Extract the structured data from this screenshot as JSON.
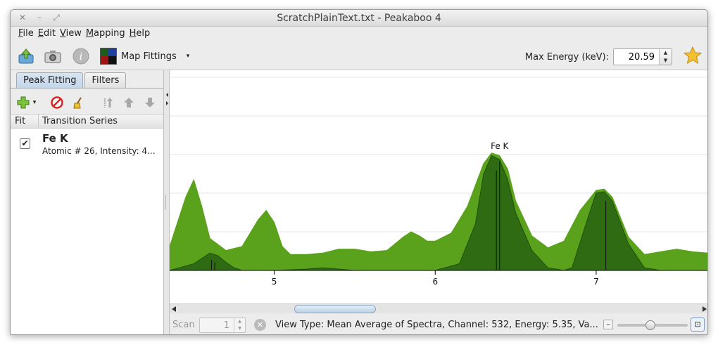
{
  "window": {
    "title": "ScratchPlainText.txt - Peakaboo 4",
    "controls": {
      "close": "✕",
      "minimize": "–",
      "maximize": "⤢"
    }
  },
  "menu": [
    {
      "label": "File",
      "mnemonic": "F",
      "rest": "ile"
    },
    {
      "label": "Edit",
      "mnemonic": "E",
      "rest": "dit"
    },
    {
      "label": "View",
      "mnemonic": "V",
      "rest": "iew"
    },
    {
      "label": "Mapping",
      "mnemonic": "M",
      "rest": "apping"
    },
    {
      "label": "Help",
      "mnemonic": "H",
      "rest": "elp"
    }
  ],
  "toolbar": {
    "icons": [
      "open-data-icon",
      "camera-icon",
      "info-icon"
    ],
    "map_fittings_label": "Map Fittings",
    "map_colors": [
      "#1a5e1a",
      "#1f3f9e",
      "#a01414",
      "#111111"
    ],
    "caret": "▾",
    "max_energy_label": "Max Energy (keV):",
    "max_energy_value": "20.59"
  },
  "left_panel": {
    "tabs": [
      {
        "label": "Peak Fitting",
        "active": true
      },
      {
        "label": "Filters",
        "active": false
      }
    ],
    "tools": [
      "add-icon",
      "remove-icon",
      "clear-icon",
      "sort-icon",
      "move-up-icon",
      "move-down-icon"
    ],
    "columns": {
      "fit": "Fit",
      "series": "Transition Series"
    },
    "rows": [
      {
        "checked": "✔",
        "title": "Fe K",
        "subtitle": "Atomic # 26, Intensity: 4..."
      }
    ]
  },
  "chart_data": {
    "type": "area",
    "xlim": [
      4.35,
      7.7
    ],
    "x_ticks": [
      "5",
      "6",
      "7"
    ],
    "grid": true,
    "annotation": "Fe K",
    "colors": {
      "spectrum": "#5aa21c",
      "fit": "#2e6b12",
      "outline": "#1f4f0a"
    },
    "series": [
      {
        "x": [
          4.35,
          4.45,
          4.5,
          4.55,
          4.6,
          4.7,
          4.8,
          4.9,
          4.95,
          5.0,
          5.05,
          5.1,
          5.2,
          5.3,
          5.4,
          5.5,
          5.6,
          5.7,
          5.8,
          5.85,
          5.9,
          5.95,
          6.0,
          6.1,
          6.2,
          6.3,
          6.35,
          6.4,
          6.45,
          6.5,
          6.6,
          6.7,
          6.8,
          6.9,
          7.0,
          7.05,
          7.1,
          7.2,
          7.3,
          7.4,
          7.5,
          7.6,
          7.7
        ],
        "y": [
          0.18,
          0.55,
          0.68,
          0.48,
          0.24,
          0.15,
          0.18,
          0.38,
          0.45,
          0.36,
          0.18,
          0.12,
          0.12,
          0.13,
          0.16,
          0.16,
          0.14,
          0.15,
          0.25,
          0.29,
          0.26,
          0.22,
          0.22,
          0.28,
          0.48,
          0.8,
          0.88,
          0.86,
          0.76,
          0.52,
          0.26,
          0.17,
          0.22,
          0.45,
          0.6,
          0.61,
          0.55,
          0.25,
          0.12,
          0.14,
          0.16,
          0.14,
          0.13
        ]
      },
      {
        "x": [
          4.35,
          4.5,
          4.55,
          4.6,
          4.65,
          4.7,
          4.75,
          4.8,
          4.9,
          5.0,
          5.2,
          5.3,
          5.4,
          5.5,
          5.8,
          6.0,
          6.15,
          6.25,
          6.3,
          6.35,
          6.4,
          6.45,
          6.5,
          6.6,
          6.7,
          6.8,
          6.85,
          6.95,
          7.0,
          7.05,
          7.1,
          7.2,
          7.3,
          7.4,
          7.7
        ],
        "y": [
          0,
          0.05,
          0.09,
          0.13,
          0.11,
          0.06,
          0.02,
          0,
          0,
          0,
          0.01,
          0.02,
          0.01,
          0,
          0,
          0,
          0.05,
          0.35,
          0.72,
          0.86,
          0.83,
          0.68,
          0.43,
          0.15,
          0.02,
          0,
          0.02,
          0.4,
          0.58,
          0.59,
          0.52,
          0.2,
          0.02,
          0,
          0
        ]
      }
    ],
    "markers": [
      {
        "x": 4.61,
        "y": 0.08
      },
      {
        "x": 4.63,
        "y": 0.06
      },
      {
        "x": 6.38,
        "y": 0.75
      },
      {
        "x": 6.4,
        "y": 0.82
      },
      {
        "x": 7.06,
        "y": 0.52
      }
    ]
  },
  "status": {
    "scan_label": "Scan",
    "scan_value": "1",
    "clear_icon": "✕",
    "text": "View Type: Mean Average of Spectra,  Channel: 532,  Energy: 5.35,  Va...",
    "zoom_minus": "–",
    "zoom_fit": "⊡",
    "zoom_level": 0.46
  }
}
